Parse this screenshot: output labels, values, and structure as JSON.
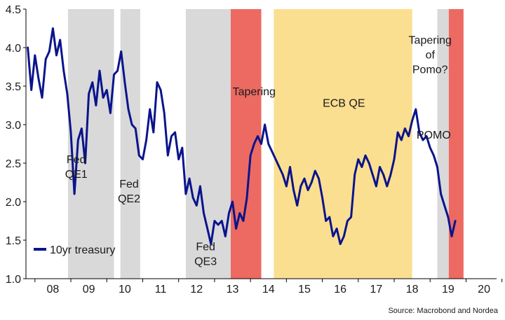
{
  "chart_data": {
    "type": "line",
    "title": "",
    "xlabel": "",
    "ylabel": "",
    "ylim": [
      1.0,
      4.5
    ],
    "xlim": [
      2007.75,
      2020.85
    ],
    "y_ticks": [
      "1.0",
      "1.5",
      "2.0",
      "2.5",
      "3.0",
      "3.5",
      "4.0",
      "4.5"
    ],
    "x_ticks": [
      {
        "label": "08",
        "value": 2008
      },
      {
        "label": "09",
        "value": 2009
      },
      {
        "label": "10",
        "value": 2010
      },
      {
        "label": "11",
        "value": 2011
      },
      {
        "label": "12",
        "value": 2012
      },
      {
        "label": "13",
        "value": 2013
      },
      {
        "label": "14",
        "value": 2014
      },
      {
        "label": "15",
        "value": 2015
      },
      {
        "label": "16",
        "value": 2016
      },
      {
        "label": "17",
        "value": 2017
      },
      {
        "label": "18",
        "value": 2018
      },
      {
        "label": "19",
        "value": 2019
      },
      {
        "label": "20",
        "value": 2020
      }
    ],
    "grid": false,
    "legend": {
      "placement": "bottom-left",
      "entries": [
        {
          "name": "10yr treasury",
          "color": "#0a148c"
        }
      ]
    },
    "bands": [
      {
        "name": "Fed QE1",
        "lines": [
          "Fed",
          "QE1"
        ],
        "start": 2008.92,
        "end": 2010.2,
        "color": "#d9d9d9"
      },
      {
        "name": "Fed QE2",
        "lines": [
          "Fed",
          "QE2"
        ],
        "start": 2010.38,
        "end": 2010.93,
        "color": "#d9d9d9"
      },
      {
        "name": "Fed QE3",
        "lines": [
          "Fed",
          "QE3"
        ],
        "start": 2012.2,
        "end": 2013.45,
        "color": "#d9d9d9"
      },
      {
        "name": "Tapering",
        "lines": [
          "Tapering"
        ],
        "start": 2013.45,
        "end": 2014.3,
        "color": "#ec6a62"
      },
      {
        "name": "ECB QE",
        "lines": [
          "ECB QE"
        ],
        "start": 2014.65,
        "end": 2018.5,
        "color": "#fbdf90"
      },
      {
        "name": "POMO",
        "lines": [
          "POMO"
        ],
        "start": 2019.2,
        "end": 2019.52,
        "color": "#d9d9d9"
      },
      {
        "name": "Tapering of Pomo?",
        "lines": [
          "Tapering",
          "of",
          "Pomo?"
        ],
        "start": 2019.52,
        "end": 2019.93,
        "color": "#ec6a62"
      }
    ],
    "band_label_positions": [
      {
        "lines": [
          "Fed",
          "QE1"
        ],
        "x": 2009.15,
        "y": 2.5
      },
      {
        "lines": [
          "Fed",
          "QE2"
        ],
        "x": 2010.62,
        "y": 2.18
      },
      {
        "lines": [
          "Fed",
          "QE3"
        ],
        "x": 2012.75,
        "y": 1.37
      },
      {
        "lines": [
          "Tapering"
        ],
        "x": 2014.1,
        "y": 3.38
      },
      {
        "lines": [
          "ECB QE"
        ],
        "x": 2016.6,
        "y": 3.23
      },
      {
        "lines": [
          "POMO"
        ],
        "x": 2019.1,
        "y": 2.82
      },
      {
        "lines": [
          "Tapering",
          "of",
          "Pomo?"
        ],
        "x": 2019.0,
        "y": 4.05
      }
    ],
    "series": [
      {
        "name": "10yr treasury",
        "color": "#0a148c",
        "x": [
          2007.8,
          2007.9,
          2008.0,
          2008.1,
          2008.2,
          2008.3,
          2008.4,
          2008.5,
          2008.6,
          2008.7,
          2008.8,
          2008.9,
          2009.0,
          2009.1,
          2009.2,
          2009.3,
          2009.4,
          2009.5,
          2009.6,
          2009.7,
          2009.8,
          2009.9,
          2010.0,
          2010.1,
          2010.2,
          2010.3,
          2010.4,
          2010.5,
          2010.6,
          2010.7,
          2010.8,
          2010.9,
          2011.0,
          2011.1,
          2011.2,
          2011.3,
          2011.4,
          2011.5,
          2011.6,
          2011.7,
          2011.8,
          2011.9,
          2012.0,
          2012.1,
          2012.2,
          2012.3,
          2012.4,
          2012.5,
          2012.6,
          2012.7,
          2012.8,
          2012.9,
          2013.0,
          2013.1,
          2013.2,
          2013.3,
          2013.4,
          2013.5,
          2013.6,
          2013.7,
          2013.8,
          2013.9,
          2014.0,
          2014.1,
          2014.2,
          2014.3,
          2014.4,
          2014.5,
          2014.6,
          2014.7,
          2014.8,
          2014.9,
          2015.0,
          2015.1,
          2015.2,
          2015.3,
          2015.4,
          2015.5,
          2015.6,
          2015.7,
          2015.8,
          2015.9,
          2016.0,
          2016.1,
          2016.2,
          2016.3,
          2016.4,
          2016.5,
          2016.6,
          2016.7,
          2016.8,
          2016.9,
          2017.0,
          2017.1,
          2017.2,
          2017.3,
          2017.4,
          2017.5,
          2017.6,
          2017.7,
          2017.8,
          2017.9,
          2018.0,
          2018.1,
          2018.2,
          2018.3,
          2018.4,
          2018.5,
          2018.6,
          2018.7,
          2018.8,
          2018.9,
          2019.0,
          2019.1,
          2019.2,
          2019.3,
          2019.4,
          2019.5,
          2019.6,
          2019.7
        ],
        "values": [
          4.0,
          3.45,
          3.9,
          3.6,
          3.35,
          3.85,
          3.95,
          4.25,
          3.9,
          4.1,
          3.7,
          3.4,
          2.9,
          2.1,
          2.8,
          2.95,
          2.5,
          3.4,
          3.55,
          3.25,
          3.7,
          3.35,
          3.45,
          3.15,
          3.65,
          3.7,
          3.95,
          3.55,
          3.2,
          3.0,
          2.95,
          2.6,
          2.55,
          2.8,
          3.2,
          2.9,
          3.55,
          3.45,
          3.15,
          2.6,
          2.85,
          2.9,
          2.55,
          2.7,
          2.1,
          2.3,
          2.05,
          1.95,
          2.2,
          1.85,
          1.65,
          1.45,
          1.75,
          1.7,
          1.75,
          1.55,
          1.85,
          2.0,
          1.65,
          1.85,
          1.75,
          2.05,
          2.6,
          2.75,
          2.85,
          2.75,
          3.0,
          2.75,
          2.65,
          2.55,
          2.45,
          2.35,
          2.2,
          2.45,
          2.15,
          1.95,
          2.2,
          2.3,
          2.15,
          2.25,
          2.4,
          2.3,
          2.05,
          1.75,
          1.8,
          1.55,
          1.65,
          1.45,
          1.55,
          1.75,
          1.8,
          2.35,
          2.55,
          2.45,
          2.6,
          2.5,
          2.35,
          2.2,
          2.45,
          2.35,
          2.2,
          2.35,
          2.55,
          2.9,
          2.8,
          2.95,
          2.85,
          3.05,
          3.2,
          2.9,
          2.8,
          2.85,
          2.7,
          2.6,
          2.45,
          2.1,
          1.95,
          1.8,
          1.55,
          1.75
        ]
      }
    ],
    "source": "Source: Macrobond and Nordea"
  }
}
